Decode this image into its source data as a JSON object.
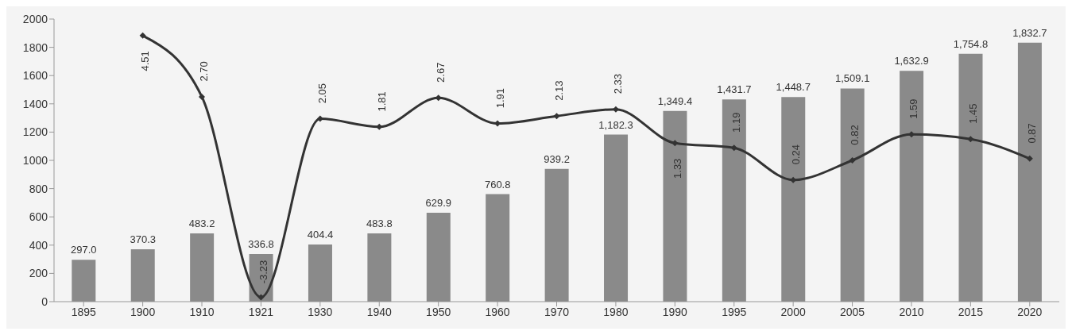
{
  "chart_data": {
    "type": "bar",
    "categories": [
      "1895",
      "1900",
      "1910",
      "1921",
      "1930",
      "1940",
      "1950",
      "1960",
      "1970",
      "1980",
      "1990",
      "1995",
      "2000",
      "2005",
      "2010",
      "2015",
      "2020"
    ],
    "series": [
      {
        "color": "#8a8a8a",
        "values": [
          297.0,
          370.3,
          483.2,
          336.8,
          404.4,
          483.8,
          629.9,
          760.8,
          939.2,
          1182.3,
          1349.4,
          1431.7,
          1448.7,
          1509.1,
          1632.9,
          1754.8,
          1832.7
        ],
        "value_labels": [
          "297.0",
          "370.3",
          "483.2",
          "336.8",
          "404.4",
          "483.8",
          "629.9",
          "760.8",
          "939.2",
          "1,182.3",
          "1,349.4",
          "1,431.7",
          "1,448.7",
          "1,509.1",
          "1,632.9",
          "1,754.8",
          "1,832.7"
        ]
      },
      {
        "type": "line",
        "axis": "y2",
        "color": "#333333",
        "marker": "diamond",
        "values": [
          null,
          4.51,
          2.7,
          -3.23,
          2.05,
          1.81,
          2.67,
          1.91,
          2.13,
          2.33,
          1.33,
          1.19,
          0.24,
          0.82,
          1.59,
          1.45,
          0.87
        ],
        "value_labels": [
          null,
          "4.51",
          "2.70",
          "-3.23",
          "2.05",
          "1.81",
          "2.67",
          "1.91",
          "2.13",
          "2.33",
          "1.33",
          "1.19",
          "0.24",
          "0.82",
          "1.59",
          "1.45",
          "0.87"
        ]
      }
    ],
    "ylim": [
      0,
      2000
    ],
    "yticks": [
      0,
      200,
      400,
      600,
      800,
      1000,
      1200,
      1400,
      1600,
      1800,
      2000
    ],
    "y2lim": [
      -3.36,
      5.0
    ],
    "grid": false,
    "legend": false
  }
}
